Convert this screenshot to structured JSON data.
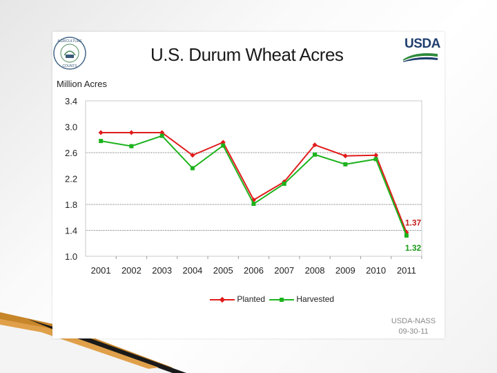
{
  "slide": {
    "title": "U.S. Durum Wheat Acres",
    "y_unit_label": "Million Acres",
    "seal_text": "AGRICULTURE COUNTS NASS",
    "logo_text": "USDA",
    "source_lines": [
      "USDA-NASS",
      "09-30-11"
    ]
  },
  "colors": {
    "planted": "#e01b1b",
    "harvested": "#1cb31c",
    "planted_label": "#c41c1c",
    "harvested_label": "#1a9a1a",
    "usda_blue": "#1f3e6e",
    "usda_green": "#2e8b3a"
  },
  "chart_data": {
    "type": "line",
    "title": "U.S. Durum Wheat Acres",
    "ylabel": "Million Acres",
    "xlabel": "",
    "categories": [
      "2001",
      "2002",
      "2003",
      "2004",
      "2005",
      "2006",
      "2007",
      "2008",
      "2009",
      "2010",
      "2011"
    ],
    "series": [
      {
        "name": "Planted",
        "color": "#e01b1b",
        "marker": "diamond",
        "values": [
          2.91,
          2.91,
          2.91,
          2.56,
          2.76,
          1.87,
          2.15,
          2.72,
          2.55,
          2.56,
          1.37
        ],
        "end_label": "1.37"
      },
      {
        "name": "Harvested",
        "color": "#1cb31c",
        "marker": "square",
        "values": [
          2.78,
          2.7,
          2.86,
          2.36,
          2.71,
          1.81,
          2.12,
          2.57,
          2.42,
          2.5,
          1.32
        ],
        "end_label": "1.32"
      }
    ],
    "ylim": [
      1.0,
      3.4
    ],
    "yticks": [
      "1.0",
      "1.4",
      "1.8",
      "2.2",
      "2.6",
      "3.0",
      "3.4"
    ],
    "ytick_values": [
      1.0,
      1.4,
      1.8,
      2.2,
      2.6,
      3.0,
      3.4
    ],
    "gridlines": [
      1.4,
      1.8,
      2.6
    ],
    "grid": "horizontal dotted at selected ticks",
    "legend_placement": "bottom-center"
  }
}
